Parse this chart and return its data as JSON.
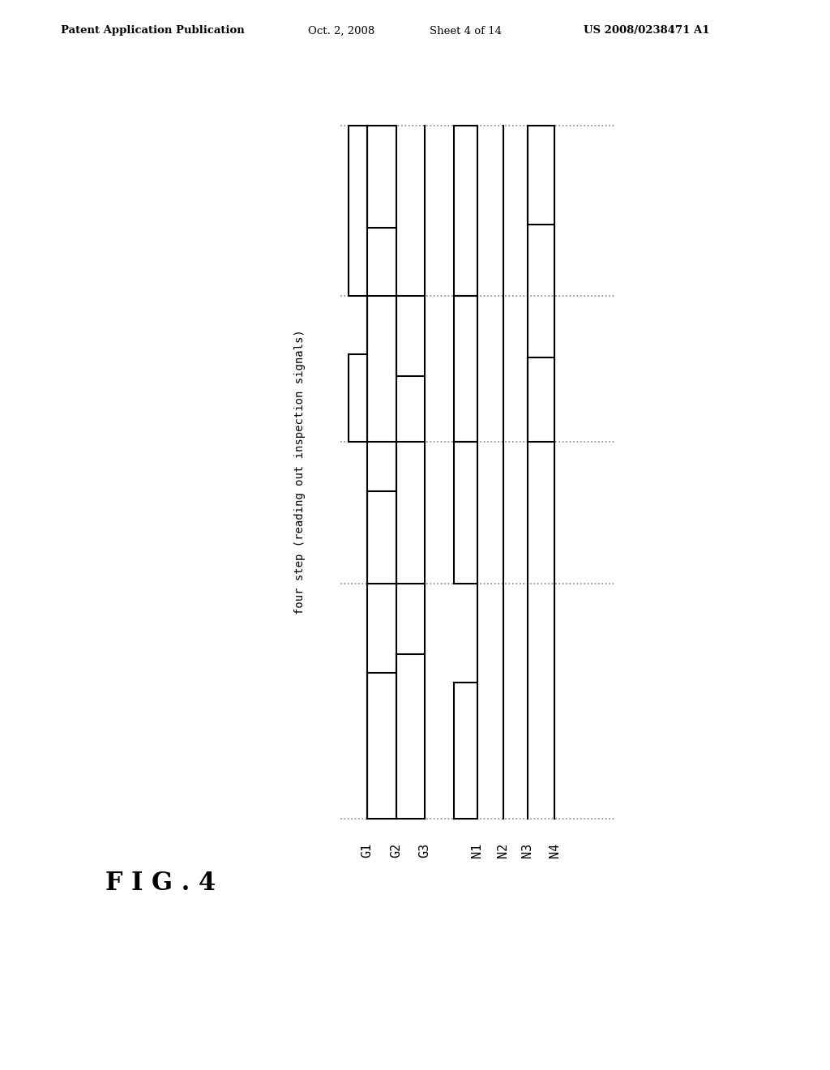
{
  "header_left": "Patent Application Publication",
  "header_date": "Oct. 2, 2008",
  "header_sheet": "Sheet 4 of 14",
  "header_patent": "US 2008/0238471 A1",
  "fig_label": "FIG. 4",
  "rotation_label": "four step (reading out inspection signals)",
  "signals": [
    "G1",
    "G2",
    "G3",
    "N1",
    "N2",
    "N3",
    "N4"
  ],
  "background_color": "#ffffff",
  "line_color": "#000000",
  "dot_color": "#888888",
  "lw": 1.5
}
